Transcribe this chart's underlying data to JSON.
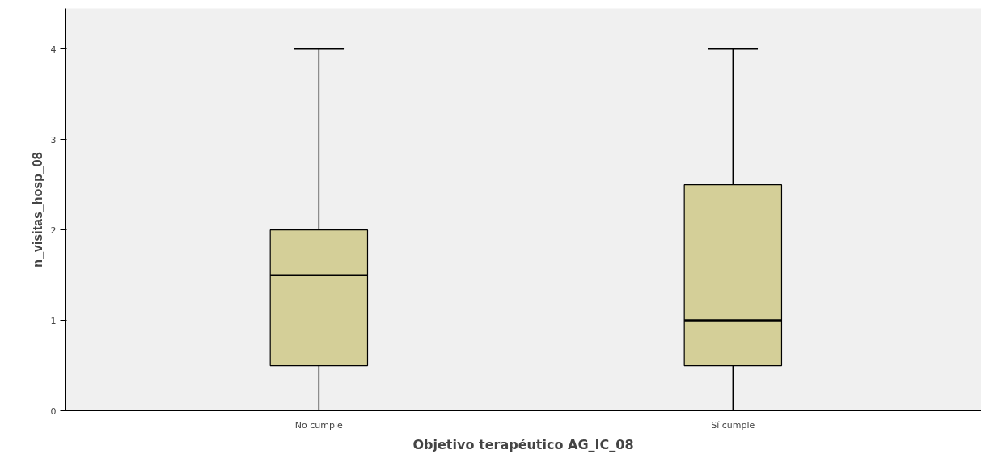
{
  "chart_data": {
    "type": "box",
    "xlabel": "Objetivo terapéutico AG_IC_08",
    "ylabel": "n_visitas_hosp_08",
    "categories": [
      "No cumple",
      "Sí cumple"
    ],
    "series": [
      {
        "color": "#d4cf98",
        "boxes": [
          {
            "low": 0,
            "q1": 0.5,
            "median": 1.5,
            "q3": 2,
            "high": 4
          },
          {
            "low": 0,
            "q1": 0.5,
            "median": 1,
            "q3": 2.5,
            "high": 4
          }
        ]
      }
    ],
    "ylim": [
      0,
      4.45
    ],
    "yticks": [
      0,
      1,
      2,
      3,
      4
    ],
    "grid": false
  }
}
